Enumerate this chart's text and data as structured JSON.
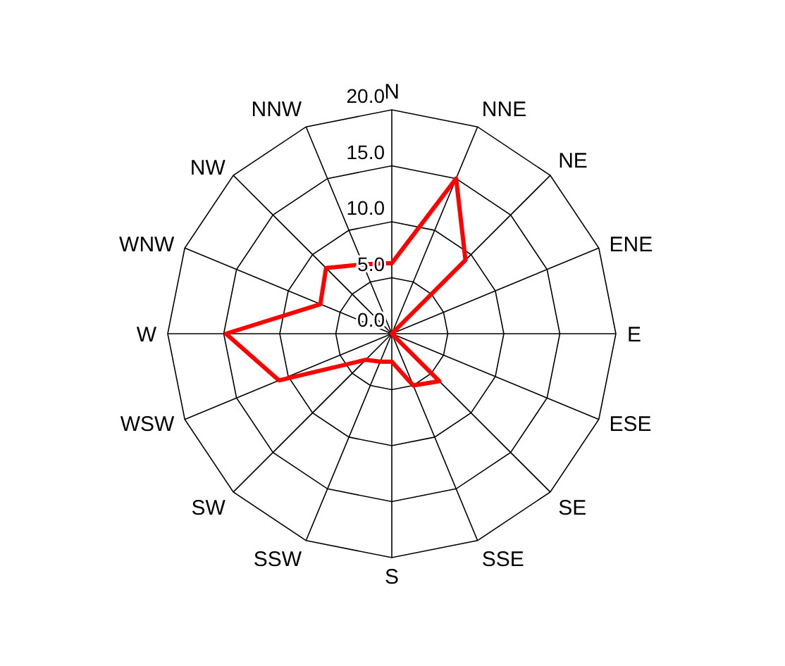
{
  "chart_data": {
    "type": "radar",
    "categories": [
      "N",
      "NNE",
      "NE",
      "ENE",
      "E",
      "ESE",
      "SE",
      "SSE",
      "S",
      "SSW",
      "SW",
      "WSW",
      "W",
      "WNW",
      "NW",
      "NNW"
    ],
    "series": [
      {
        "color": "#ff0000",
        "values": [
          6.3,
          15,
          9.3,
          0,
          0,
          0,
          6,
          5,
          2.5,
          2.7,
          3.3,
          10.9,
          14.8,
          6.9,
          8.3,
          6.7
        ]
      }
    ],
    "ylim": [
      0,
      20
    ],
    "yticks": [
      {
        "value": 0,
        "label": "0.0"
      },
      {
        "value": 5,
        "label": "5.0"
      },
      {
        "value": 10,
        "label": "10.0"
      },
      {
        "value": 15,
        "label": "15.0"
      },
      {
        "value": 20,
        "label": "20.0"
      }
    ],
    "grid": true
  }
}
